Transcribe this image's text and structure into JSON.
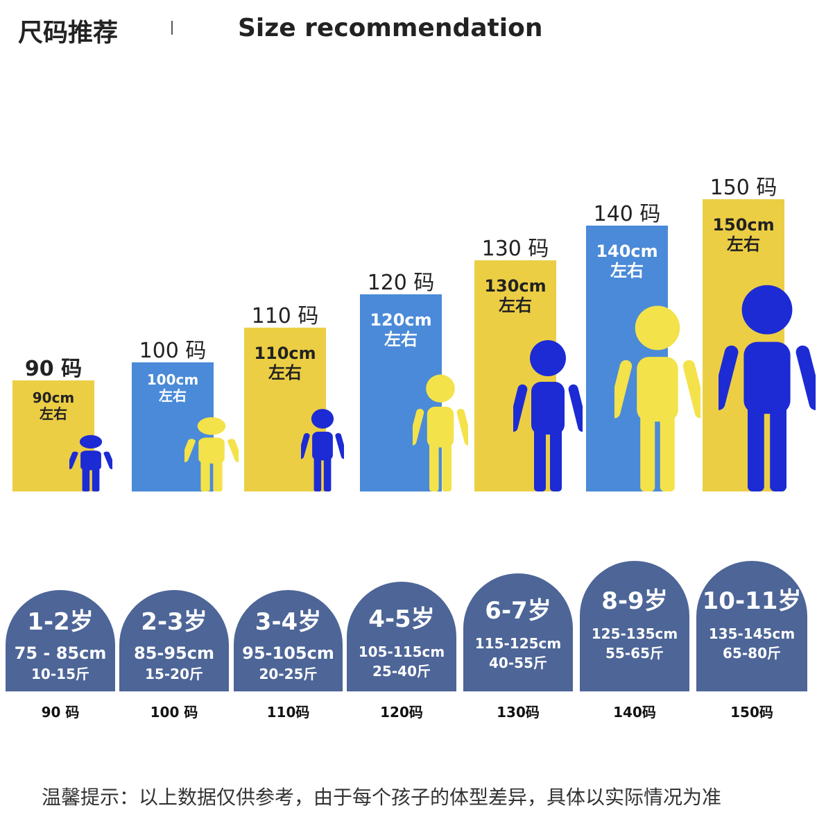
{
  "header": {
    "title_cn": "尺码推荐",
    "title_en": "Size recommendation"
  },
  "colors": {
    "yellow": "#ecce44",
    "blue": "#4a8ad8",
    "figure_blue": "#1c2bd4",
    "figure_yellow": "#f3e24a",
    "card_bg": "#4d6597"
  },
  "sizes": [
    {
      "top_label": "90 码",
      "bar_line1": "90cm",
      "bar_line2": "左右",
      "bar_color": "yellow",
      "figure_color": "blue",
      "age": "1-2岁",
      "height_range": "75 - 85cm",
      "weight_range": "10-15斤",
      "bottom_label": "90 码"
    },
    {
      "top_label": "100 码",
      "bar_line1": "100cm",
      "bar_line2": "左右",
      "bar_color": "blue",
      "figure_color": "yellow",
      "age": "2-3岁",
      "height_range": "85-95cm",
      "weight_range": "15-20斤",
      "bottom_label": "100 码"
    },
    {
      "top_label": "110 码",
      "bar_line1": "110cm",
      "bar_line2": "左右",
      "bar_color": "yellow",
      "figure_color": "blue",
      "age": "3-4岁",
      "height_range": "95-105cm",
      "weight_range": "20-25斤",
      "bottom_label": "110码"
    },
    {
      "top_label": "120 码",
      "bar_line1": "120cm",
      "bar_line2": "左右",
      "bar_color": "blue",
      "figure_color": "yellow",
      "age": "4-5岁",
      "height_range": "105-115cm",
      "weight_range": "25-40斤",
      "bottom_label": "120码"
    },
    {
      "top_label": "130 码",
      "bar_line1": "130cm",
      "bar_line2": "左右",
      "bar_color": "yellow",
      "figure_color": "blue",
      "age": "6-7岁",
      "height_range": "115-125cm",
      "weight_range": "40-55斤",
      "bottom_label": "130码"
    },
    {
      "top_label": "140 码",
      "bar_line1": "140cm",
      "bar_line2": "左右",
      "bar_color": "blue",
      "figure_color": "yellow",
      "age": "8-9岁",
      "height_range": "125-135cm",
      "weight_range": "55-65斤",
      "bottom_label": "140码"
    },
    {
      "top_label": "150 码",
      "bar_line1": "150cm",
      "bar_line2": "左右",
      "bar_color": "yellow",
      "figure_color": "blue",
      "age": "10-11岁",
      "height_range": "135-145cm",
      "weight_range": "65-80斤",
      "bottom_label": "150码"
    }
  ],
  "footer": {
    "note": "温馨提示：以上数据仅供参考，由于每个孩子的体型差异，具体以实际情况为准"
  }
}
